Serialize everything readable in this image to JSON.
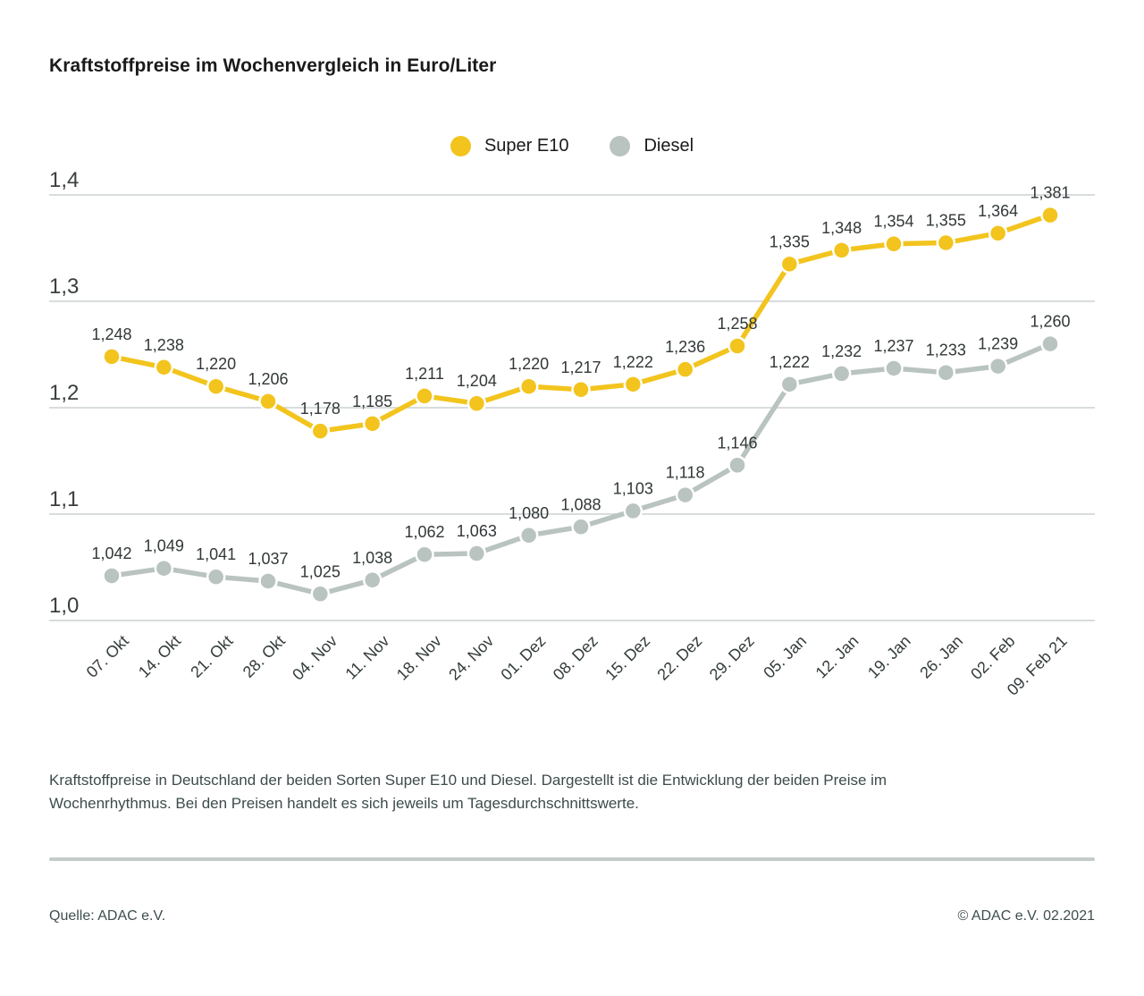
{
  "title": "Kraftstoffpreise im Wochenvergleich in Euro/Liter",
  "legend": [
    {
      "label": "Super E10",
      "color": "#F2C41D"
    },
    {
      "label": "Diesel",
      "color": "#B9C3C0"
    }
  ],
  "chart_data": {
    "type": "line",
    "title": "Kraftstoffpreise im Wochenvergleich in Euro/Liter",
    "categories": [
      "07. Okt",
      "14. Okt",
      "21. Okt",
      "28. Okt",
      "04. Nov",
      "11. Nov",
      "18. Nov",
      "24. Nov",
      "01. Dez",
      "08. Dez",
      "15. Dez",
      "22. Dez",
      "29. Dez",
      "05. Jan",
      "12. Jan",
      "19. Jan",
      "26. Jan",
      "02. Feb",
      "09. Feb 21"
    ],
    "series": [
      {
        "name": "Super E10",
        "color": "#F2C41D",
        "values": [
          1.248,
          1.238,
          1.22,
          1.206,
          1.178,
          1.185,
          1.211,
          1.204,
          1.22,
          1.217,
          1.222,
          1.236,
          1.258,
          1.335,
          1.348,
          1.354,
          1.355,
          1.364,
          1.381
        ],
        "labels": [
          "1,248",
          "1,238",
          "1,220",
          "1,206",
          "1,178",
          "1,185",
          "1,211",
          "1,204",
          "1,220",
          "1,217",
          "1,222",
          "1,236",
          "1,258",
          "1,335",
          "1,348",
          "1,354",
          "1,355",
          "1,364",
          "1,381"
        ]
      },
      {
        "name": "Diesel",
        "color": "#B9C3C0",
        "values": [
          1.042,
          1.049,
          1.041,
          1.037,
          1.025,
          1.038,
          1.062,
          1.063,
          1.08,
          1.088,
          1.103,
          1.118,
          1.146,
          1.222,
          1.232,
          1.237,
          1.233,
          1.239,
          1.26
        ],
        "labels": [
          "1,042",
          "1,049",
          "1,041",
          "1,037",
          "1,025",
          "1,038",
          "1,062",
          "1,063",
          "1,080",
          "1,088",
          "1,103",
          "1,118",
          "1,146",
          "1,222",
          "1,232",
          "1,237",
          "1,233",
          "1,239",
          "1,260"
        ]
      }
    ],
    "ylim": [
      1.0,
      1.4
    ],
    "yticks": [
      {
        "value": 1.0,
        "label": "1,0"
      },
      {
        "value": 1.1,
        "label": "1,1"
      },
      {
        "value": 1.2,
        "label": "1,2"
      },
      {
        "value": 1.3,
        "label": "1,3"
      },
      {
        "value": 1.4,
        "label": "1,4"
      }
    ],
    "grid": true,
    "legend_position": "top-center",
    "colors": {
      "grid": "#cbd0d0",
      "axis_text": "#3a3e3e",
      "value_label": "#323737",
      "category_label": "#333b3b"
    }
  },
  "caption_lines": [
    "Kraftstoffpreise in Deutschland der beiden Sorten Super E10 und Diesel. Dargestellt ist die Entwicklung der beiden Preise im",
    "Wochenrhythmus. Bei den Preisen handelt es sich jeweils um Tagesdurchschnittswerte."
  ],
  "footer": {
    "source": "Quelle: ADAC e.V.",
    "copyright": "© ADAC e.V. 02.2021"
  }
}
